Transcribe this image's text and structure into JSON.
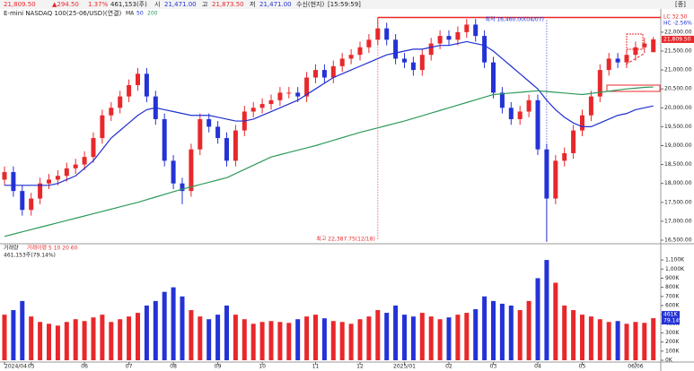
{
  "header": {
    "last": "21,809.50",
    "change": "▲294.50",
    "pct": "1.37%",
    "volume": "461,153(주)",
    "open_label": "시",
    "open": "21,471.00",
    "high_label": "고",
    "high": "21,873.50",
    "low_label": "저",
    "low": "21,471.00",
    "feed": "수신(현지)",
    "time": "[15:59:59]",
    "menu": "[종]",
    "title": "E-mini NASDAQ 100(25-06/USD)(연결)"
  },
  "chart_data": [
    {
      "type": "candlestick",
      "legend": [
        "MA",
        "50",
        "200"
      ],
      "categories": [
        "2024/04",
        null,
        null,
        "05",
        null,
        null,
        null,
        null,
        null,
        "06",
        null,
        null,
        null,
        null,
        "07",
        null,
        null,
        null,
        null,
        "08",
        null,
        null,
        null,
        null,
        "09",
        null,
        null,
        null,
        null,
        "10",
        null,
        null,
        null,
        null,
        null,
        "11",
        null,
        null,
        null,
        null,
        "12",
        null,
        null,
        null,
        null,
        "2025/01",
        null,
        null,
        null,
        null,
        "02",
        null,
        null,
        null,
        null,
        "03",
        null,
        null,
        null,
        null,
        "04",
        null,
        null,
        null,
        null,
        "05",
        null,
        null,
        null,
        null,
        null,
        "06/06",
        null,
        null
      ],
      "open": [
        18100,
        18300,
        17800,
        17300,
        17600,
        18000,
        18100,
        18200,
        18400,
        18500,
        18700,
        19200,
        19800,
        20000,
        20300,
        20600,
        20900,
        20300,
        19700,
        18600,
        18000,
        17800,
        18900,
        19700,
        19500,
        19200,
        18600,
        19400,
        19900,
        20000,
        20100,
        20200,
        20400,
        20400,
        20300,
        20800,
        21000,
        20800,
        21100,
        21300,
        21400,
        21600,
        21800,
        22100,
        21800,
        21300,
        21200,
        21000,
        21400,
        21700,
        21900,
        21800,
        22000,
        22200,
        21900,
        21200,
        20400,
        20000,
        19700,
        19900,
        20200,
        18900,
        17600,
        18600,
        18800,
        19400,
        19800,
        20300,
        21000,
        21300,
        21200,
        21400,
        21600,
        21471
      ],
      "high": [
        18450,
        18450,
        17950,
        17750,
        18150,
        18250,
        18350,
        18550,
        18650,
        18850,
        19350,
        19950,
        20150,
        20450,
        20750,
        21050,
        21050,
        20450,
        19850,
        18750,
        18150,
        19050,
        19850,
        19850,
        19650,
        19350,
        19550,
        20050,
        20150,
        20250,
        20350,
        20550,
        20550,
        20550,
        20950,
        21150,
        21150,
        21250,
        21450,
        21550,
        21750,
        21950,
        22387.75,
        22250,
        21950,
        21450,
        21350,
        21550,
        21850,
        22050,
        22050,
        22150,
        22350,
        22350,
        22050,
        21350,
        20550,
        20150,
        20050,
        20350,
        20350,
        19050,
        18750,
        18950,
        19550,
        19950,
        20450,
        21150,
        21450,
        21450,
        21550,
        21750,
        21850,
        21873.5
      ],
      "low": [
        17950,
        17650,
        17150,
        17150,
        17450,
        17850,
        17950,
        18050,
        18250,
        18350,
        18550,
        19050,
        19650,
        19850,
        20150,
        20450,
        20150,
        19550,
        18450,
        17850,
        17450,
        17650,
        18750,
        19350,
        19050,
        18450,
        18450,
        19250,
        19750,
        19850,
        19950,
        20050,
        20250,
        20150,
        20150,
        20650,
        20650,
        20650,
        20950,
        21150,
        21250,
        21450,
        21650,
        21650,
        21150,
        21050,
        20850,
        20850,
        21250,
        21550,
        21650,
        21650,
        21850,
        21750,
        21050,
        20250,
        19850,
        19550,
        19550,
        19750,
        18750,
        16460,
        17450,
        18450,
        18650,
        19250,
        19650,
        20150,
        20850,
        21050,
        21050,
        21250,
        21450,
        21471
      ],
      "close": [
        18300,
        17800,
        17300,
        17600,
        18000,
        18100,
        18200,
        18400,
        18500,
        18700,
        19200,
        19800,
        20000,
        20300,
        20600,
        20900,
        20300,
        19700,
        18600,
        18000,
        17800,
        18900,
        19700,
        19500,
        19200,
        18600,
        19400,
        19900,
        20000,
        20100,
        20200,
        20400,
        20400,
        20300,
        20800,
        21000,
        20800,
        21100,
        21300,
        21400,
        21600,
        21800,
        22100,
        21800,
        21300,
        21200,
        21000,
        21400,
        21700,
        21900,
        21800,
        22000,
        22200,
        21900,
        21200,
        20400,
        20000,
        19700,
        19900,
        20200,
        18900,
        17600,
        18600,
        18800,
        19400,
        19800,
        20300,
        21000,
        21300,
        21200,
        21400,
        21600,
        21700,
        21809.5
      ],
      "up_color": "#e8282b",
      "down_color": "#2433d6",
      "series": [
        {
          "name": "50",
          "color": "#1f2fd0",
          "values": [
            17950,
            17950,
            17950,
            17950,
            17950,
            17950,
            18000,
            18100,
            18200,
            18400,
            18600,
            18900,
            19200,
            19400,
            19600,
            19800,
            19950,
            20000,
            19950,
            19900,
            19850,
            19800,
            19800,
            19800,
            19750,
            19700,
            19650,
            19650,
            19700,
            19800,
            19900,
            20000,
            20100,
            20200,
            20350,
            20500,
            20650,
            20800,
            20900,
            21000,
            21100,
            21200,
            21300,
            21400,
            21450,
            21500,
            21550,
            21550,
            21600,
            21650,
            21650,
            21700,
            21750,
            21700,
            21650,
            21500,
            21300,
            21100,
            20900,
            20700,
            20500,
            20200,
            19950,
            19750,
            19600,
            19500,
            19500,
            19600,
            19700,
            19800,
            19850,
            19950,
            20000,
            20050
          ]
        },
        {
          "name": "200",
          "color": "#2e9a5a",
          "values": [
            16600,
            16660,
            16720,
            16780,
            16840,
            16900,
            16960,
            17020,
            17080,
            17140,
            17200,
            17260,
            17320,
            17380,
            17440,
            17500,
            17570,
            17640,
            17710,
            17780,
            17850,
            17910,
            17970,
            18030,
            18090,
            18150,
            18260,
            18370,
            18480,
            18590,
            18700,
            18760,
            18820,
            18880,
            18940,
            19000,
            19070,
            19140,
            19210,
            19280,
            19350,
            19410,
            19470,
            19530,
            19590,
            19650,
            19720,
            19790,
            19860,
            19930,
            20000,
            20070,
            20140,
            20210,
            20280,
            20350,
            20370,
            20390,
            20410,
            20430,
            20450,
            20430,
            20410,
            20390,
            20370,
            20350,
            20380,
            20410,
            20440,
            20470,
            20500,
            20520,
            20540,
            20550
          ]
        }
      ],
      "ylim": [
        16405,
        22424
      ],
      "yticks": [
        {
          "value": 16500,
          "label": "16,500.00"
        },
        {
          "value": 17000,
          "label": "17,000.00"
        },
        {
          "value": 17500,
          "label": "17,500.00"
        },
        {
          "value": 18000,
          "label": "18,000.00"
        },
        {
          "value": 18500,
          "label": "18,500.00"
        },
        {
          "value": 19000,
          "label": "19,000.00"
        },
        {
          "value": 19500,
          "label": "19,500.00"
        },
        {
          "value": 20000,
          "label": "20,000.00"
        },
        {
          "value": 20500,
          "label": "20,500.00"
        },
        {
          "value": 21000,
          "label": "21,000.00"
        },
        {
          "value": 21500,
          "label": "21,500.00"
        },
        {
          "value": 22000,
          "label": "22,000.00"
        }
      ],
      "last_label": "21,809.50",
      "lc": "LC 32.50",
      "hc": "HC -2.56%",
      "annotations": {
        "high": "최고 22,387.75(12/18)",
        "low": "최저 16,460.00(04/07)"
      }
    },
    {
      "type": "bar",
      "title": "거래량",
      "ma_label": "거래이평 5 10 20 60",
      "info": "461,153주(79.14%)",
      "last_label": "461K",
      "last_pct": "79.14%",
      "values": [
        500,
        550,
        650,
        480,
        420,
        400,
        380,
        420,
        450,
        430,
        470,
        500,
        420,
        450,
        480,
        520,
        600,
        650,
        750,
        800,
        700,
        550,
        480,
        450,
        500,
        600,
        500,
        450,
        400,
        420,
        430,
        420,
        410,
        450,
        480,
        500,
        460,
        430,
        420,
        400,
        450,
        480,
        550,
        520,
        600,
        500,
        480,
        520,
        480,
        450,
        470,
        500,
        520,
        560,
        700,
        650,
        620,
        600,
        550,
        650,
        900,
        1100,
        850,
        600,
        550,
        500,
        480,
        450,
        420,
        430,
        400,
        420,
        410,
        461.153
      ],
      "ylim": [
        0,
        1150
      ],
      "yticks": [
        {
          "value": 0,
          "label": "0K"
        },
        {
          "value": 100,
          "label": "100K"
        },
        {
          "value": 200,
          "label": "200K"
        },
        {
          "value": 300,
          "label": "300K"
        },
        {
          "value": 400,
          "label": "400K"
        },
        {
          "value": 500,
          "label": "500K"
        },
        {
          "value": 600,
          "label": "600K"
        },
        {
          "value": 700,
          "label": "700K"
        },
        {
          "value": 800,
          "label": "800K"
        },
        {
          "value": 900,
          "label": "900K"
        },
        {
          "value": 1000,
          "label": "1,000K"
        },
        {
          "value": 1100,
          "label": "1,100K"
        }
      ]
    }
  ]
}
